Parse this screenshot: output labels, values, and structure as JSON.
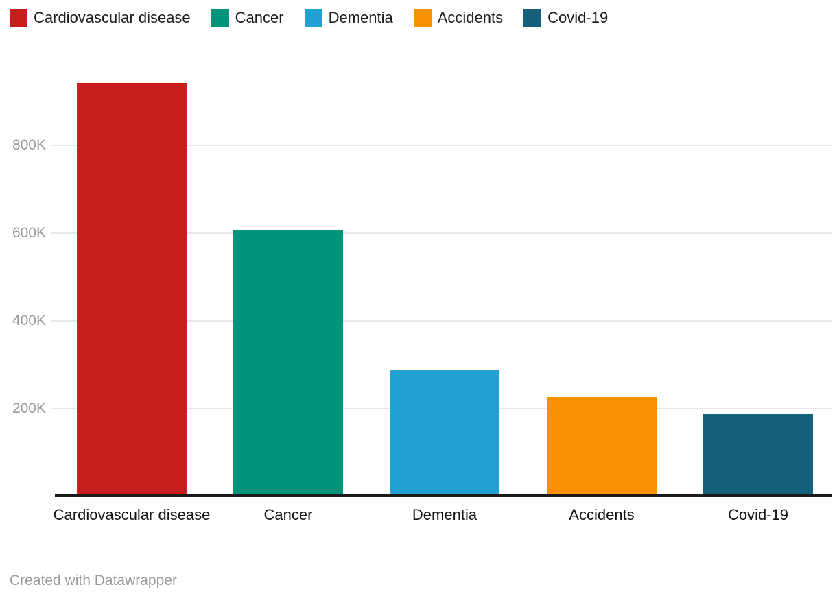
{
  "chart_data": {
    "type": "bar",
    "title": "",
    "xlabel": "",
    "ylabel": "",
    "categories": [
      "Cardiovascular disease",
      "Cancer",
      "Dementia",
      "Accidents",
      "Covid-19"
    ],
    "values": [
      942000,
      608000,
      287000,
      227000,
      187000
    ],
    "colors": [
      "#c71e1d",
      "#00947b",
      "#1fa2d2",
      "#f89000",
      "#15607a"
    ],
    "ylim": [
      0,
      960000
    ],
    "yticks": [
      {
        "value": 200000,
        "label": "200K"
      },
      {
        "value": 400000,
        "label": "400K"
      },
      {
        "value": 600000,
        "label": "600K"
      },
      {
        "value": 800000,
        "label": "800K"
      }
    ],
    "grid": "horizontal",
    "legend_position": "top"
  },
  "legend": {
    "items": [
      {
        "label": "Cardiovascular disease",
        "color": "#c71e1d"
      },
      {
        "label": "Cancer",
        "color": "#00947b"
      },
      {
        "label": "Dementia",
        "color": "#1fa2d2"
      },
      {
        "label": "Accidents",
        "color": "#f89000"
      },
      {
        "label": "Covid-19",
        "color": "#15607a"
      }
    ]
  },
  "footer": {
    "text": "Created with Datawrapper"
  }
}
